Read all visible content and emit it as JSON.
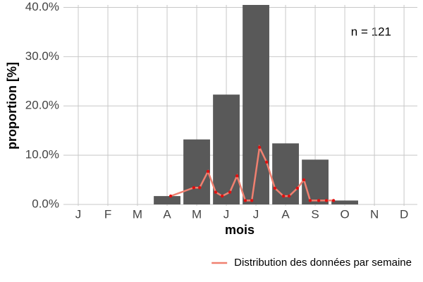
{
  "chart_data": {
    "type": "bar",
    "x_label": "mois",
    "y_label": "proportion [%]",
    "annotation": "n = 121",
    "categories": [
      "J",
      "F",
      "M",
      "A",
      "M",
      "J",
      "J",
      "A",
      "S",
      "O",
      "N",
      "D"
    ],
    "values": [
      null,
      null,
      null,
      1.7,
      13.2,
      22.3,
      40.5,
      12.4,
      9.1,
      0.8,
      null,
      null
    ],
    "color": "#595959",
    "line": {
      "name": "Distribution des données par semaine",
      "color": "#f08070",
      "marker_color": "#e01010",
      "x": [
        4.12,
        4.9,
        5.1,
        5.38,
        5.64,
        5.86,
        6.12,
        6.36,
        6.64,
        6.86,
        7.12,
        7.36,
        7.64,
        7.93,
        8.12,
        8.4,
        8.62,
        8.83,
        9.12,
        9.38,
        9.62
      ],
      "values": [
        1.7,
        3.4,
        3.4,
        6.7,
        2.5,
        1.7,
        2.5,
        5.8,
        0.8,
        0.8,
        11.6,
        8.6,
        3.3,
        1.7,
        1.7,
        3.3,
        5.0,
        0.8,
        0.8,
        0.8,
        0.8
      ]
    },
    "xlim": [
      0.5,
      12.45
    ],
    "ylim": [
      0,
      40.5
    ],
    "yticks": [
      {
        "value": 0,
        "label": "0.0%"
      },
      {
        "value": 10,
        "label": "10.0%"
      },
      {
        "value": 20,
        "label": "20.0%"
      },
      {
        "value": 30,
        "label": "30.0%"
      },
      {
        "value": 40,
        "label": "40.0%"
      }
    ],
    "grid": true,
    "legend": "bottom-right"
  }
}
